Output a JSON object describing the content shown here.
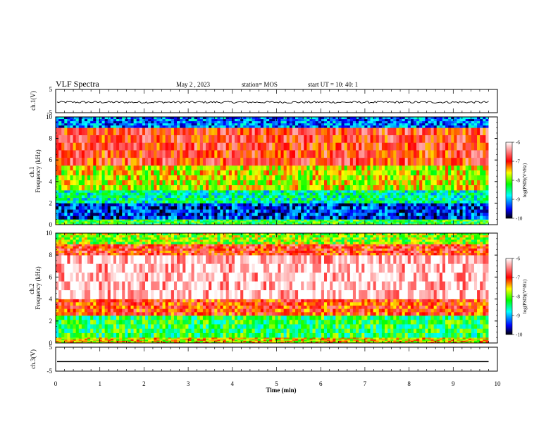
{
  "header": {
    "title": "VLF Spectra",
    "date": "May 2 , 2023",
    "station": "station= MOS",
    "start": "start UT = 10: 40: 1"
  },
  "chart_data": [
    {
      "type": "line",
      "name": "ch1-voltage",
      "ylabel": "ch.1(V)",
      "ylim": [
        -5,
        5
      ],
      "yticks": [
        "5",
        "-5"
      ],
      "trace_level": -0.5
    },
    {
      "type": "heatmap",
      "name": "ch1-spectrogram",
      "ylabel": "ch.1\nFrequency (kHz)",
      "ylabel_line1": "ch.1",
      "ylabel_line2": "Frequency (kHz)",
      "ylim": [
        0,
        10
      ],
      "yticks": [
        "0",
        "2",
        "4",
        "6",
        "8",
        "10"
      ],
      "colorbar": {
        "label": "log(PSD)(V²/Hz)",
        "range": [
          -10,
          -6
        ],
        "ticks": [
          "-6",
          "-7",
          "-8",
          "-9",
          "-10"
        ]
      },
      "bands": [
        {
          "from_khz": 0.0,
          "to_khz": 0.5,
          "level": -8.2
        },
        {
          "from_khz": 0.5,
          "to_khz": 2.0,
          "level": -9.4
        },
        {
          "from_khz": 2.0,
          "to_khz": 3.2,
          "level": -8.6
        },
        {
          "from_khz": 3.2,
          "to_khz": 5.5,
          "level": -7.7
        },
        {
          "from_khz": 5.5,
          "to_khz": 9.0,
          "level": -6.9
        },
        {
          "from_khz": 9.0,
          "to_khz": 10.0,
          "level": -9.2
        }
      ]
    },
    {
      "type": "heatmap",
      "name": "ch2-spectrogram",
      "ylabel": "ch.2\nFrequency (kHz)",
      "ylabel_line1": "ch.2",
      "ylabel_line2": "Frequency (kHz)",
      "ylim": [
        0,
        10
      ],
      "yticks": [
        "0",
        "2",
        "4",
        "6",
        "8",
        "10"
      ],
      "colorbar": {
        "label": "log(PSD)(V²/Hz)",
        "range": [
          -10,
          -6
        ],
        "ticks": [
          "-6",
          "-7",
          "-8",
          "-9",
          "-10"
        ]
      },
      "bands": [
        {
          "from_khz": 0.0,
          "to_khz": 0.5,
          "level": -7.6
        },
        {
          "from_khz": 0.5,
          "to_khz": 2.5,
          "level": -8.3
        },
        {
          "from_khz": 2.5,
          "to_khz": 4.0,
          "level": -7.0
        },
        {
          "from_khz": 4.0,
          "to_khz": 8.0,
          "level": -6.2
        },
        {
          "from_khz": 8.0,
          "to_khz": 9.0,
          "level": -6.9
        },
        {
          "from_khz": 9.0,
          "to_khz": 10.0,
          "level": -7.9
        }
      ]
    },
    {
      "type": "line",
      "name": "ch3-voltage",
      "ylabel": "ch.3(V)",
      "ylim": [
        -5,
        5
      ],
      "yticks": [
        "5",
        "-5"
      ],
      "trace_level": -1.0
    }
  ],
  "xaxis": {
    "label": "Time (min)",
    "range": [
      0,
      10
    ],
    "data_end": 9.8,
    "ticks": [
      "0",
      "1",
      "2",
      "3",
      "4",
      "5",
      "6",
      "7",
      "8",
      "9",
      "10"
    ]
  },
  "colors": {
    "colormap": [
      "#00007f",
      "#0000ff",
      "#00ffff",
      "#00ff00",
      "#ffff00",
      "#ff0000",
      "#ffffff"
    ]
  }
}
